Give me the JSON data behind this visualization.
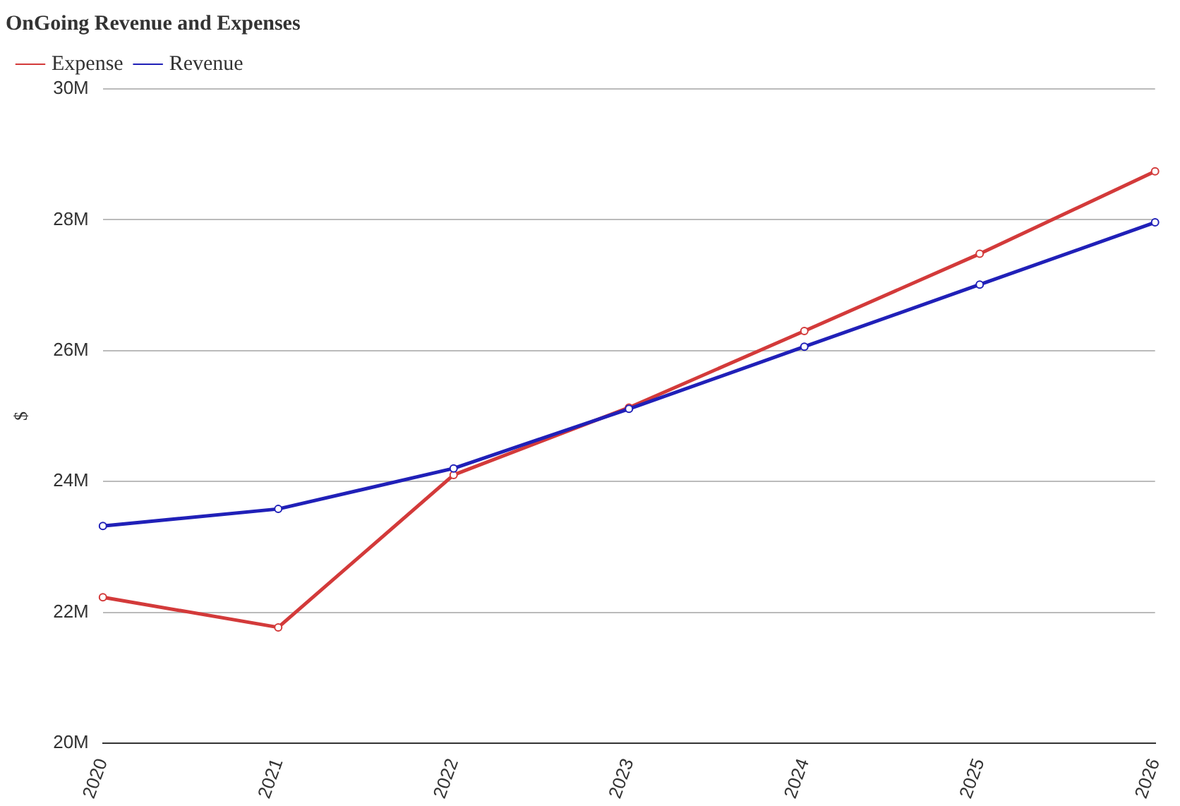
{
  "chart_data": {
    "type": "line",
    "title": "OnGoing Revenue and Expenses",
    "ylabel": "$",
    "categories": [
      "2020",
      "2021",
      "2022",
      "2023",
      "2024",
      "2025",
      "2026"
    ],
    "series": [
      {
        "name": "Expense",
        "color": "#d33a3a",
        "values": [
          22.23,
          21.77,
          24.1,
          25.13,
          26.3,
          27.48,
          28.74
        ]
      },
      {
        "name": "Revenue",
        "color": "#2020b8",
        "values": [
          23.32,
          23.58,
          24.2,
          25.11,
          26.06,
          27.01,
          27.96
        ]
      }
    ],
    "ylim": [
      20,
      30
    ],
    "yticks": [
      {
        "value": 20,
        "label": "20M"
      },
      {
        "value": 22,
        "label": "22M"
      },
      {
        "value": 24,
        "label": "24M"
      },
      {
        "value": 26,
        "label": "26M"
      },
      {
        "value": 28,
        "label": "28M"
      },
      {
        "value": 30,
        "label": "30M"
      }
    ],
    "grid": "y",
    "legend": "top left",
    "marker": "circle",
    "line_style": "solid"
  }
}
